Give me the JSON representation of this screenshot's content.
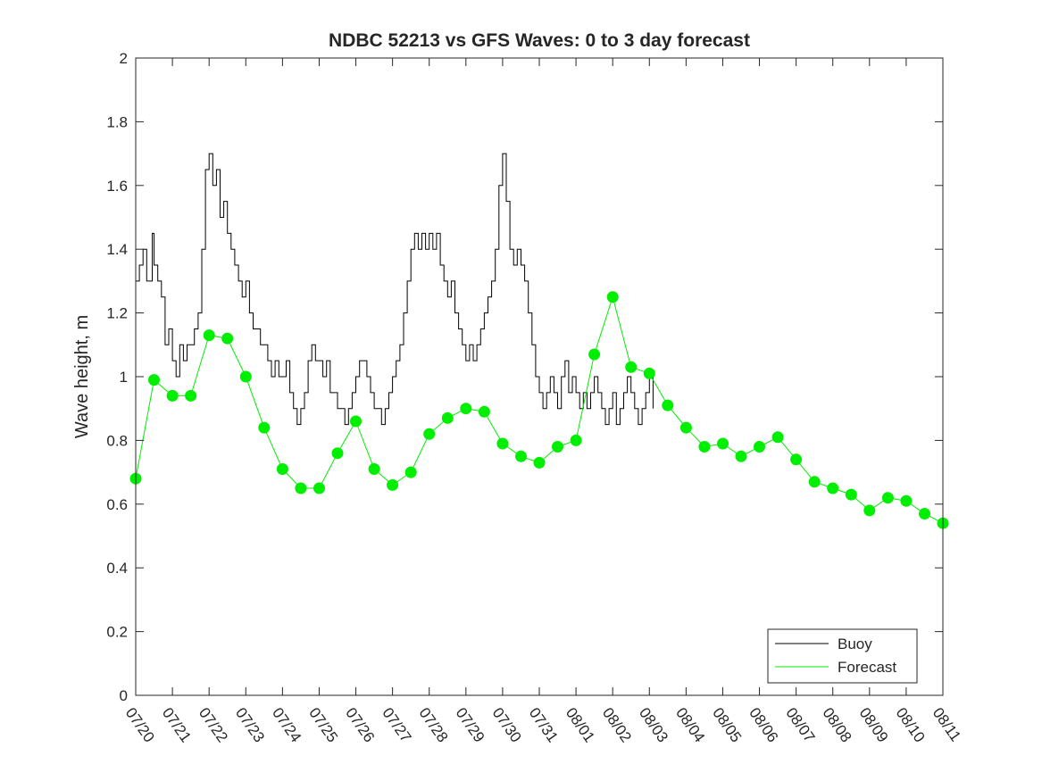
{
  "chart_data": {
    "type": "line",
    "title": "NDBC 52213 vs GFS Waves: 0 to 3 day forecast",
    "xlabel": "",
    "ylabel": "Wave height, m",
    "ylim": [
      0,
      2
    ],
    "yticks": [
      "0",
      "0.2",
      "0.4",
      "0.6",
      "0.8",
      "1",
      "1.2",
      "1.4",
      "1.6",
      "1.8",
      "2"
    ],
    "xlim": [
      "07/20",
      "08/11"
    ],
    "xticks": [
      "07/20",
      "07/21",
      "07/22",
      "07/23",
      "07/24",
      "07/25",
      "07/26",
      "07/27",
      "07/28",
      "07/29",
      "07/30",
      "07/31",
      "08/01",
      "08/02",
      "08/03",
      "08/04",
      "08/05",
      "08/06",
      "08/07",
      "08/08",
      "08/09",
      "08/10",
      "08/11"
    ],
    "legend_position": "bottom-right",
    "grid": false,
    "colors": {
      "buoy": "#000000",
      "forecast": "#00ee00"
    },
    "series": [
      {
        "name": "Buoy",
        "points": [
          [
            0.0,
            1.3
          ],
          [
            0.1,
            1.35
          ],
          [
            0.2,
            1.4
          ],
          [
            0.3,
            1.3
          ],
          [
            0.4,
            1.3
          ],
          [
            0.45,
            1.45
          ],
          [
            0.5,
            1.35
          ],
          [
            0.6,
            1.3
          ],
          [
            0.7,
            1.25
          ],
          [
            0.8,
            1.1
          ],
          [
            0.9,
            1.15
          ],
          [
            1.0,
            1.05
          ],
          [
            1.1,
            1.0
          ],
          [
            1.2,
            1.1
          ],
          [
            1.3,
            1.05
          ],
          [
            1.4,
            1.1
          ],
          [
            1.5,
            1.1
          ],
          [
            1.6,
            1.15
          ],
          [
            1.7,
            1.2
          ],
          [
            1.8,
            1.4
          ],
          [
            1.9,
            1.65
          ],
          [
            2.0,
            1.7
          ],
          [
            2.1,
            1.6
          ],
          [
            2.2,
            1.65
          ],
          [
            2.3,
            1.5
          ],
          [
            2.4,
            1.55
          ],
          [
            2.5,
            1.45
          ],
          [
            2.6,
            1.4
          ],
          [
            2.7,
            1.35
          ],
          [
            2.8,
            1.3
          ],
          [
            2.9,
            1.25
          ],
          [
            3.0,
            1.3
          ],
          [
            3.1,
            1.2
          ],
          [
            3.2,
            1.15
          ],
          [
            3.3,
            1.15
          ],
          [
            3.4,
            1.1
          ],
          [
            3.5,
            1.1
          ],
          [
            3.6,
            1.05
          ],
          [
            3.7,
            1.0
          ],
          [
            3.8,
            1.05
          ],
          [
            3.9,
            1.0
          ],
          [
            4.0,
            1.0
          ],
          [
            4.1,
            1.05
          ],
          [
            4.2,
            0.95
          ],
          [
            4.3,
            0.9
          ],
          [
            4.4,
            0.85
          ],
          [
            4.5,
            0.9
          ],
          [
            4.6,
            0.95
          ],
          [
            4.7,
            1.05
          ],
          [
            4.8,
            1.1
          ],
          [
            4.9,
            1.05
          ],
          [
            5.0,
            1.05
          ],
          [
            5.1,
            1.0
          ],
          [
            5.2,
            1.05
          ],
          [
            5.3,
            0.95
          ],
          [
            5.4,
            0.95
          ],
          [
            5.5,
            0.9
          ],
          [
            5.6,
            0.9
          ],
          [
            5.7,
            0.85
          ],
          [
            5.8,
            0.9
          ],
          [
            5.9,
            0.95
          ],
          [
            6.0,
            1.0
          ],
          [
            6.1,
            1.05
          ],
          [
            6.2,
            1.05
          ],
          [
            6.3,
            1.0
          ],
          [
            6.4,
            0.95
          ],
          [
            6.5,
            0.9
          ],
          [
            6.6,
            0.9
          ],
          [
            6.7,
            0.85
          ],
          [
            6.8,
            0.9
          ],
          [
            6.9,
            0.95
          ],
          [
            7.0,
            1.0
          ],
          [
            7.1,
            1.05
          ],
          [
            7.2,
            1.1
          ],
          [
            7.3,
            1.2
          ],
          [
            7.4,
            1.3
          ],
          [
            7.5,
            1.4
          ],
          [
            7.6,
            1.45
          ],
          [
            7.7,
            1.4
          ],
          [
            7.8,
            1.45
          ],
          [
            7.9,
            1.4
          ],
          [
            8.0,
            1.45
          ],
          [
            8.1,
            1.4
          ],
          [
            8.2,
            1.45
          ],
          [
            8.3,
            1.35
          ],
          [
            8.4,
            1.3
          ],
          [
            8.5,
            1.25
          ],
          [
            8.6,
            1.3
          ],
          [
            8.7,
            1.2
          ],
          [
            8.8,
            1.15
          ],
          [
            8.9,
            1.1
          ],
          [
            9.0,
            1.05
          ],
          [
            9.1,
            1.1
          ],
          [
            9.2,
            1.05
          ],
          [
            9.3,
            1.1
          ],
          [
            9.4,
            1.15
          ],
          [
            9.5,
            1.2
          ],
          [
            9.6,
            1.25
          ],
          [
            9.7,
            1.3
          ],
          [
            9.8,
            1.4
          ],
          [
            9.9,
            1.6
          ],
          [
            10.0,
            1.7
          ],
          [
            10.1,
            1.55
          ],
          [
            10.2,
            1.4
          ],
          [
            10.3,
            1.35
          ],
          [
            10.4,
            1.4
          ],
          [
            10.5,
            1.35
          ],
          [
            10.6,
            1.3
          ],
          [
            10.7,
            1.2
          ],
          [
            10.8,
            1.1
          ],
          [
            10.9,
            1.0
          ],
          [
            11.0,
            0.95
          ],
          [
            11.1,
            0.9
          ],
          [
            11.2,
            0.95
          ],
          [
            11.3,
            1.0
          ],
          [
            11.4,
            0.95
          ],
          [
            11.5,
            0.9
          ],
          [
            11.6,
            1.0
          ],
          [
            11.7,
            1.05
          ],
          [
            11.8,
            0.95
          ],
          [
            11.9,
            1.0
          ],
          [
            12.0,
            0.95
          ],
          [
            12.1,
            0.9
          ],
          [
            12.2,
            0.95
          ],
          [
            12.3,
            0.9
          ],
          [
            12.4,
            0.95
          ],
          [
            12.5,
            1.0
          ],
          [
            12.6,
            0.95
          ],
          [
            12.7,
            0.9
          ],
          [
            12.8,
            0.85
          ],
          [
            12.9,
            0.9
          ],
          [
            13.0,
            0.95
          ],
          [
            13.1,
            0.85
          ],
          [
            13.2,
            0.9
          ],
          [
            13.3,
            0.95
          ],
          [
            13.4,
            1.0
          ],
          [
            13.5,
            0.95
          ],
          [
            13.6,
            0.9
          ],
          [
            13.7,
            0.85
          ],
          [
            13.8,
            0.9
          ],
          [
            13.9,
            0.95
          ],
          [
            14.0,
            1.0
          ],
          [
            14.1,
            0.9
          ]
        ]
      },
      {
        "name": "Forecast",
        "points": [
          [
            0.0,
            0.68
          ],
          [
            0.5,
            0.99
          ],
          [
            1.0,
            0.94
          ],
          [
            1.5,
            0.94
          ],
          [
            2.0,
            1.13
          ],
          [
            2.5,
            1.12
          ],
          [
            3.0,
            1.0
          ],
          [
            3.5,
            0.84
          ],
          [
            4.0,
            0.71
          ],
          [
            4.5,
            0.65
          ],
          [
            5.0,
            0.65
          ],
          [
            5.5,
            0.76
          ],
          [
            6.0,
            0.86
          ],
          [
            6.5,
            0.71
          ],
          [
            7.0,
            0.66
          ],
          [
            7.5,
            0.7
          ],
          [
            8.0,
            0.82
          ],
          [
            8.5,
            0.87
          ],
          [
            9.0,
            0.9
          ],
          [
            9.5,
            0.89
          ],
          [
            10.0,
            0.79
          ],
          [
            10.5,
            0.75
          ],
          [
            11.0,
            0.73
          ],
          [
            11.5,
            0.78
          ],
          [
            12.0,
            0.8
          ],
          [
            12.5,
            1.07
          ],
          [
            13.0,
            1.25
          ],
          [
            13.5,
            1.03
          ],
          [
            14.0,
            1.01
          ],
          [
            14.5,
            0.91
          ],
          [
            15.0,
            0.84
          ],
          [
            15.5,
            0.78
          ],
          [
            16.0,
            0.79
          ],
          [
            16.5,
            0.75
          ],
          [
            17.0,
            0.78
          ],
          [
            17.5,
            0.81
          ],
          [
            18.0,
            0.74
          ],
          [
            18.5,
            0.67
          ],
          [
            19.0,
            0.65
          ],
          [
            19.5,
            0.63
          ],
          [
            20.0,
            0.58
          ],
          [
            20.5,
            0.62
          ],
          [
            21.0,
            0.61
          ],
          [
            21.5,
            0.57
          ],
          [
            22.0,
            0.54
          ]
        ]
      }
    ]
  }
}
